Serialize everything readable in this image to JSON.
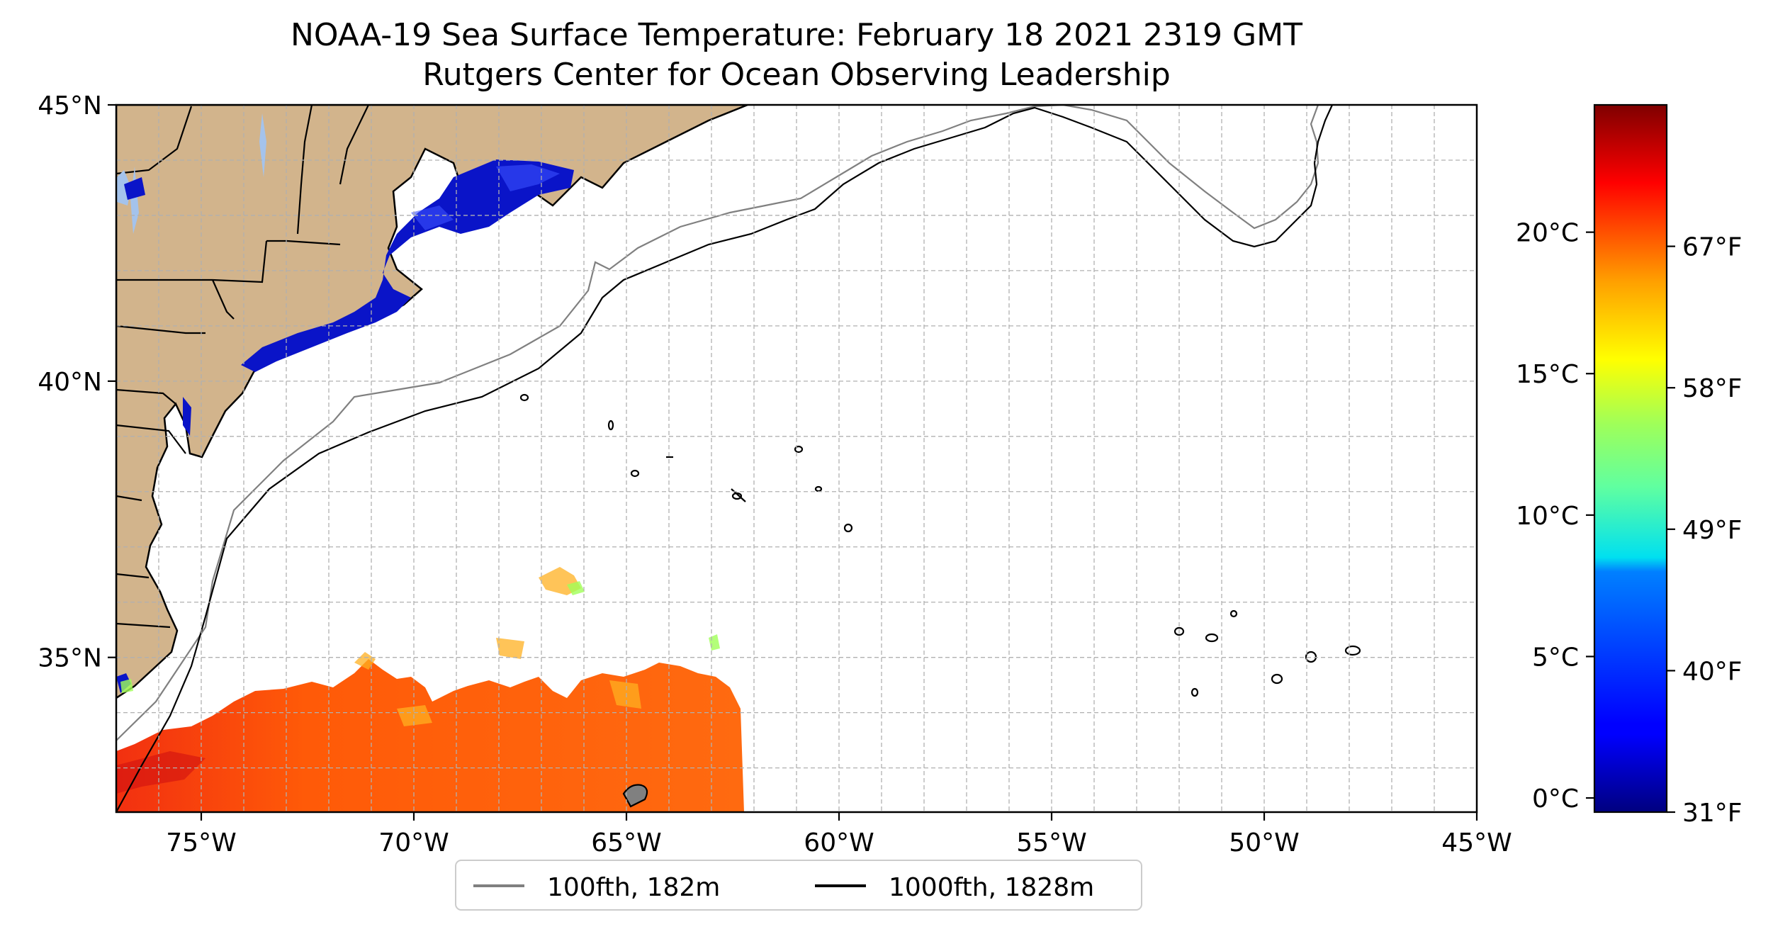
{
  "title": "NOAA-19 Sea Surface Temperature: February 18 2021 2319 GMT",
  "subtitle": "Rutgers Center for Ocean Observing Leadership",
  "map": {
    "lon_range": [
      -77,
      -45
    ],
    "lat_range": [
      32.2,
      45
    ],
    "lon_ticks": [
      {
        "value": -75,
        "label": "75°W"
      },
      {
        "value": -70,
        "label": "70°W"
      },
      {
        "value": -65,
        "label": "65°W"
      },
      {
        "value": -60,
        "label": "60°W"
      },
      {
        "value": -55,
        "label": "55°W"
      },
      {
        "value": -50,
        "label": "50°W"
      },
      {
        "value": -45,
        "label": "45°W"
      }
    ],
    "lat_ticks": [
      {
        "value": 45,
        "label": "45°N"
      },
      {
        "value": 40,
        "label": "40°N"
      },
      {
        "value": 35,
        "label": "35°N"
      }
    ],
    "gridlines": true,
    "land_color": "#d2b48c",
    "lake_color": "#a4c3ec"
  },
  "legend": {
    "placement": "bottom-center",
    "items": [
      {
        "label": "100fth, 182m",
        "color": "#808080"
      },
      {
        "label": "1000fth, 1828m",
        "color": "#000000"
      }
    ]
  },
  "colorbar": {
    "colormap": "jet",
    "range_c": [
      -0.5,
      24.5
    ],
    "celsius_ticks": [
      {
        "value": 0,
        "label": "0°C"
      },
      {
        "value": 5,
        "label": "5°C"
      },
      {
        "value": 10,
        "label": "10°C"
      },
      {
        "value": 15,
        "label": "15°C"
      },
      {
        "value": 20,
        "label": "20°C"
      }
    ],
    "fahrenheit_ticks": [
      {
        "value_c": -0.5,
        "label": "31°F"
      },
      {
        "value_c": 4.5,
        "label": "40°F"
      },
      {
        "value_c": 9.5,
        "label": "49°F"
      },
      {
        "value_c": 14.5,
        "label": "58°F"
      },
      {
        "value_c": 19.5,
        "label": "67°F"
      }
    ]
  }
}
